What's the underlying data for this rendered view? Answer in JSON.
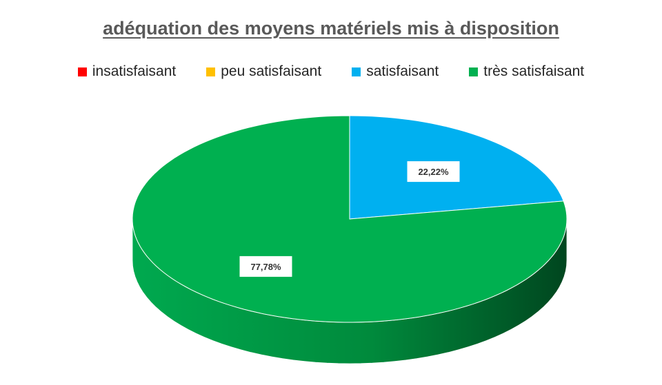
{
  "chart_data": {
    "type": "pie",
    "title": "adéquation des moyens matériels mis à disposition",
    "legend_position": "top",
    "categories": [
      "insatisfaisant",
      "peu satisfaisant",
      "satisfaisant",
      "très satisfaisant"
    ],
    "values": [
      0,
      0,
      22.22,
      77.78
    ],
    "data_labels": [
      "",
      "",
      "22,22%",
      "77,78%"
    ],
    "colors": [
      "#ff0000",
      "#ffc000",
      "#00b0f0",
      "#00b050"
    ]
  }
}
